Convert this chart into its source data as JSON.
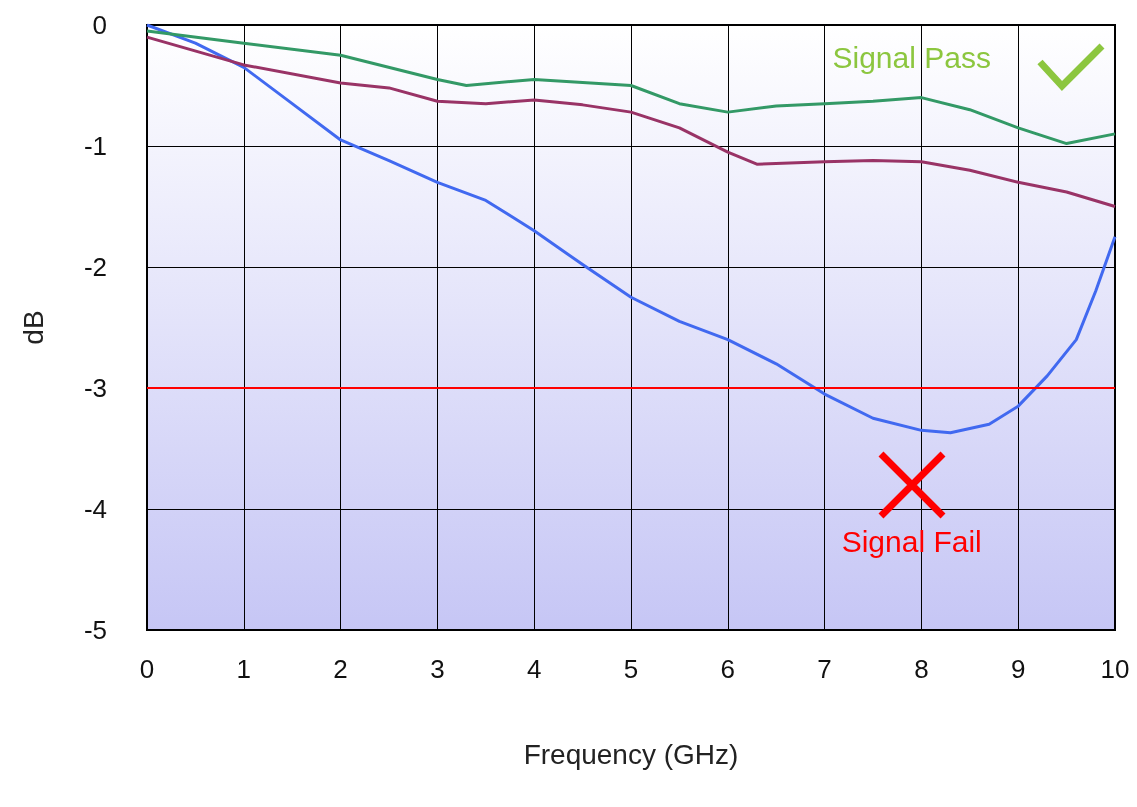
{
  "chart_data": {
    "type": "line",
    "xlabel": "Frequency (GHz)",
    "ylabel": "dB",
    "xlim": [
      0,
      10
    ],
    "xticks": [
      0,
      1,
      2,
      3,
      4,
      5,
      6,
      7,
      8,
      9,
      10
    ],
    "ylim": [
      -5,
      0
    ],
    "yticks": [
      -5,
      -4,
      -3,
      -2,
      -1,
      0
    ],
    "grid": true,
    "legend": false,
    "marker": "none",
    "line_style": "solid",
    "series": [
      {
        "color": "#4169f0",
        "x": [
          0,
          0.5,
          1,
          1.5,
          2,
          2.5,
          3,
          3.5,
          4,
          4.5,
          5,
          5.5,
          6,
          6.5,
          7,
          7.5,
          8,
          8.3,
          8.7,
          9,
          9.3,
          9.6,
          9.8,
          10
        ],
        "values": [
          0,
          -0.15,
          -0.35,
          -0.65,
          -0.95,
          -1.12,
          -1.3,
          -1.45,
          -1.7,
          -1.98,
          -2.25,
          -2.45,
          -2.6,
          -2.8,
          -3.05,
          -3.25,
          -3.35,
          -3.37,
          -3.3,
          -3.15,
          -2.9,
          -2.6,
          -2.2,
          -1.75
        ]
      },
      {
        "color": "#993366",
        "x": [
          0,
          1,
          2,
          2.5,
          3,
          3.5,
          4,
          4.5,
          5,
          5.5,
          6,
          6.3,
          7,
          7.5,
          8,
          8.5,
          9,
          9.5,
          10
        ],
        "values": [
          -0.1,
          -0.33,
          -0.48,
          -0.52,
          -0.63,
          -0.65,
          -0.62,
          -0.66,
          -0.72,
          -0.85,
          -1.05,
          -1.15,
          -1.13,
          -1.12,
          -1.13,
          -1.2,
          -1.3,
          -1.38,
          -1.5
        ]
      },
      {
        "color": "#339966",
        "x": [
          0,
          1,
          2,
          3,
          3.3,
          4,
          5,
          5.5,
          6,
          6.5,
          7,
          7.5,
          8,
          8.5,
          9,
          9.5,
          10
        ],
        "values": [
          -0.05,
          -0.15,
          -0.25,
          -0.45,
          -0.5,
          -0.45,
          -0.5,
          -0.65,
          -0.72,
          -0.67,
          -0.65,
          -0.63,
          -0.6,
          -0.7,
          -0.85,
          -0.98,
          -0.9
        ]
      }
    ],
    "ref_lines": [
      {
        "axis": "y",
        "value": -3,
        "color": "#ff0000"
      }
    ],
    "annotations": [
      "Signal Pass",
      "Signal Fail"
    ]
  }
}
